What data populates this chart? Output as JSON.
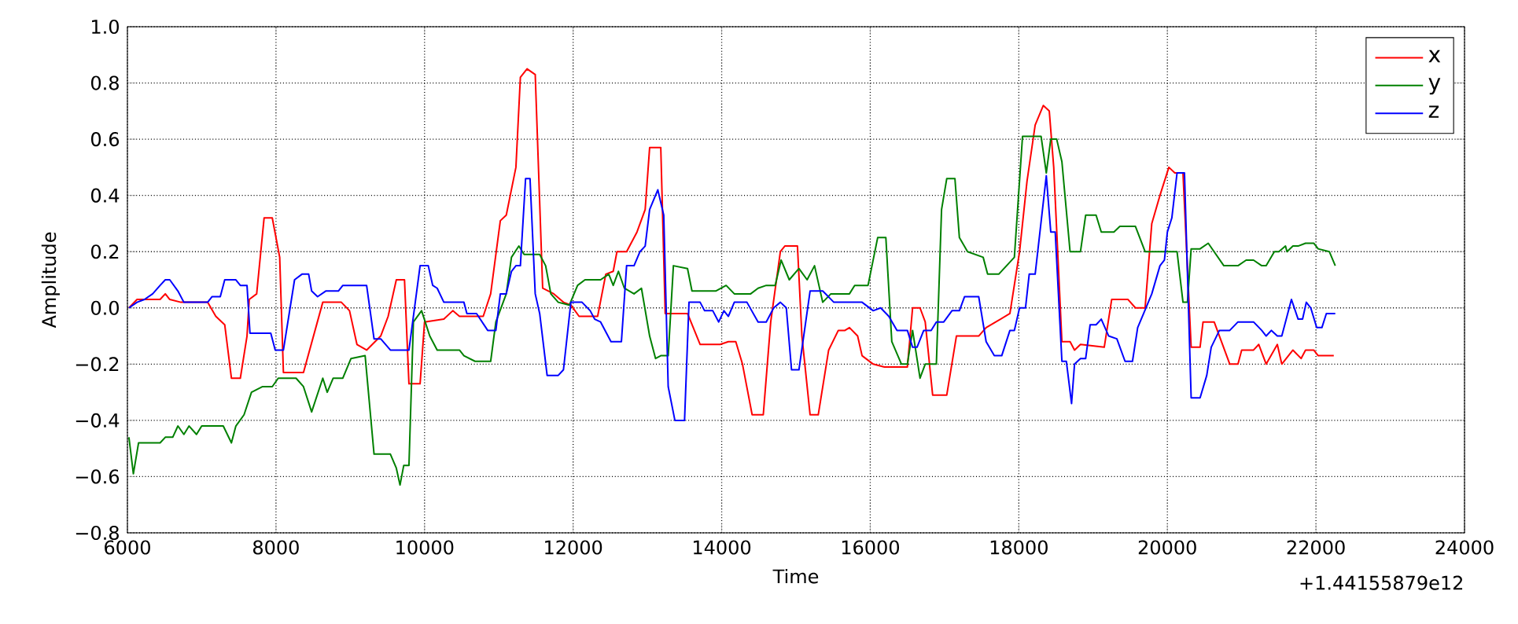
{
  "chart_data": {
    "type": "line",
    "xlabel": "Time",
    "ylabel": "Amplitude",
    "annotations": [
      "+1.44155879e12"
    ],
    "xlim": [
      6000,
      24000
    ],
    "xticks": [
      6000,
      8000,
      10000,
      12000,
      14000,
      16000,
      18000,
      20000,
      22000,
      24000
    ],
    "ylim": [
      -0.8,
      1.0
    ],
    "yticks": [
      {
        "value": -0.8,
        "label": "−0.8"
      },
      {
        "value": -0.6,
        "label": "−0.6"
      },
      {
        "value": -0.4,
        "label": "−0.4"
      },
      {
        "value": -0.2,
        "label": "−0.2"
      },
      {
        "value": 0,
        "label": "0.0"
      },
      {
        "value": 0.2,
        "label": "0.2"
      },
      {
        "value": 0.4,
        "label": "0.4"
      },
      {
        "value": 0.6,
        "label": "0.6"
      },
      {
        "value": 0.8,
        "label": "0.8"
      },
      {
        "value": 1.0,
        "label": "1.0"
      }
    ],
    "grid": true,
    "legend": "top right",
    "marker": "none",
    "line_style": "solid",
    "series": [
      {
        "name": "x",
        "color": "#ff0000",
        "x": [
          6020,
          6130,
          6440,
          6510,
          6570,
          6720,
          7080,
          7190,
          7310,
          7400,
          7520,
          7610,
          7640,
          7740,
          7840,
          7950,
          8050,
          8100,
          8370,
          8630,
          8880,
          8990,
          9090,
          9220,
          9410,
          9510,
          9620,
          9730,
          9790,
          9940,
          10000,
          10260,
          10380,
          10470,
          10790,
          10890,
          11020,
          11100,
          11230,
          11290,
          11380,
          11490,
          11590,
          11740,
          11870,
          11970,
          12080,
          12330,
          12440,
          12540,
          12590,
          12720,
          12860,
          12970,
          13030,
          13180,
          13240,
          13540,
          13710,
          13980,
          14090,
          14190,
          14280,
          14410,
          14560,
          14660,
          14790,
          14850,
          15020,
          15080,
          15190,
          15300,
          15440,
          15570,
          15660,
          15720,
          15830,
          15890,
          16040,
          16190,
          16500,
          16570,
          16670,
          16740,
          16840,
          17030,
          17160,
          17460,
          17560,
          17690,
          17880,
          18010,
          18110,
          18220,
          18330,
          18410,
          18470,
          18580,
          18690,
          18750,
          18830,
          19150,
          19250,
          19470,
          19570,
          19700,
          19790,
          19900,
          20020,
          20100,
          20210,
          20320,
          20440,
          20480,
          20630,
          20840,
          20950,
          21000,
          21160,
          21230,
          21330,
          21480,
          21540,
          21690,
          21800,
          21860,
          21970,
          22030,
          22240
        ],
        "values": [
          0.0,
          0.03,
          0.03,
          0.05,
          0.03,
          0.02,
          0.02,
          -0.03,
          -0.06,
          -0.25,
          -0.25,
          -0.1,
          0.03,
          0.05,
          0.32,
          0.32,
          0.18,
          -0.23,
          -0.23,
          0.02,
          0.02,
          -0.01,
          -0.13,
          -0.15,
          -0.1,
          -0.03,
          0.1,
          0.1,
          -0.27,
          -0.27,
          -0.05,
          -0.04,
          -0.01,
          -0.03,
          -0.03,
          0.05,
          0.31,
          0.33,
          0.5,
          0.82,
          0.85,
          0.83,
          0.07,
          0.05,
          0.02,
          0.01,
          -0.03,
          -0.03,
          0.12,
          0.13,
          0.2,
          0.2,
          0.27,
          0.35,
          0.57,
          0.57,
          -0.02,
          -0.02,
          -0.13,
          -0.13,
          -0.12,
          -0.12,
          -0.2,
          -0.38,
          -0.38,
          -0.05,
          0.2,
          0.22,
          0.22,
          -0.1,
          -0.38,
          -0.38,
          -0.15,
          -0.08,
          -0.08,
          -0.07,
          -0.1,
          -0.17,
          -0.2,
          -0.21,
          -0.21,
          0.0,
          0.0,
          -0.05,
          -0.31,
          -0.31,
          -0.1,
          -0.1,
          -0.07,
          -0.05,
          -0.02,
          0.2,
          0.45,
          0.65,
          0.72,
          0.7,
          0.5,
          -0.12,
          -0.12,
          -0.15,
          -0.13,
          -0.14,
          0.03,
          0.03,
          0.0,
          0.0,
          0.3,
          0.4,
          0.5,
          0.48,
          0.48,
          -0.14,
          -0.14,
          -0.05,
          -0.05,
          -0.2,
          -0.2,
          -0.15,
          -0.15,
          -0.13,
          -0.2,
          -0.13,
          -0.2,
          -0.15,
          -0.18,
          -0.15,
          -0.15,
          -0.17,
          -0.17
        ]
      },
      {
        "name": "y",
        "color": "#008000",
        "x": [
          6020,
          6080,
          6150,
          6230,
          6440,
          6510,
          6610,
          6680,
          6760,
          6830,
          6930,
          7000,
          7290,
          7400,
          7460,
          7570,
          7670,
          7820,
          7950,
          8030,
          8270,
          8370,
          8480,
          8630,
          8690,
          8770,
          8900,
          9010,
          9200,
          9320,
          9540,
          9620,
          9670,
          9720,
          9790,
          9850,
          9960,
          10070,
          10170,
          10380,
          10470,
          10530,
          10680,
          10890,
          10960,
          11100,
          11170,
          11270,
          11340,
          11550,
          11630,
          11700,
          11800,
          11950,
          12060,
          12160,
          12370,
          12480,
          12540,
          12610,
          12690,
          12820,
          12920,
          13030,
          13110,
          13180,
          13280,
          13350,
          13540,
          13600,
          13920,
          14060,
          14170,
          14390,
          14490,
          14600,
          14720,
          14800,
          14910,
          15040,
          15150,
          15250,
          15360,
          15470,
          15720,
          15790,
          15970,
          16100,
          16210,
          16290,
          16420,
          16500,
          16570,
          16670,
          16740,
          16890,
          16960,
          17030,
          17140,
          17200,
          17310,
          17520,
          17580,
          17730,
          17940,
          18050,
          18300,
          18370,
          18430,
          18510,
          18580,
          18690,
          18830,
          18900,
          19040,
          19110,
          19280,
          19360,
          19570,
          19700,
          20130,
          20210,
          20270,
          20320,
          20440,
          20550,
          20760,
          20950,
          21060,
          21160,
          21270,
          21330,
          21440,
          21500,
          21590,
          21610,
          21690,
          21760,
          21860,
          21970,
          22030,
          22180,
          22260
        ],
        "values": [
          -0.46,
          -0.59,
          -0.48,
          -0.48,
          -0.48,
          -0.46,
          -0.46,
          -0.42,
          -0.45,
          -0.42,
          -0.45,
          -0.42,
          -0.42,
          -0.48,
          -0.42,
          -0.38,
          -0.3,
          -0.28,
          -0.28,
          -0.25,
          -0.25,
          -0.28,
          -0.37,
          -0.25,
          -0.3,
          -0.25,
          -0.25,
          -0.18,
          -0.17,
          -0.52,
          -0.52,
          -0.57,
          -0.63,
          -0.56,
          -0.56,
          -0.05,
          -0.01,
          -0.1,
          -0.15,
          -0.15,
          -0.15,
          -0.17,
          -0.19,
          -0.19,
          -0.05,
          0.05,
          0.18,
          0.22,
          0.19,
          0.19,
          0.15,
          0.05,
          0.02,
          0.01,
          0.08,
          0.1,
          0.1,
          0.12,
          0.08,
          0.13,
          0.07,
          0.05,
          0.07,
          -0.1,
          -0.18,
          -0.17,
          -0.17,
          0.15,
          0.14,
          0.06,
          0.06,
          0.08,
          0.05,
          0.05,
          0.07,
          0.08,
          0.08,
          0.17,
          0.1,
          0.14,
          0.1,
          0.15,
          0.02,
          0.05,
          0.05,
          0.08,
          0.08,
          0.25,
          0.25,
          -0.12,
          -0.2,
          -0.2,
          -0.08,
          -0.25,
          -0.2,
          -0.2,
          0.35,
          0.46,
          0.46,
          0.25,
          0.2,
          0.18,
          0.12,
          0.12,
          0.18,
          0.61,
          0.61,
          0.48,
          0.6,
          0.6,
          0.52,
          0.2,
          0.2,
          0.33,
          0.33,
          0.27,
          0.27,
          0.29,
          0.29,
          0.2,
          0.2,
          0.02,
          0.02,
          0.21,
          0.21,
          0.23,
          0.15,
          0.15,
          0.17,
          0.17,
          0.15,
          0.15,
          0.2,
          0.2,
          0.22,
          0.2,
          0.22,
          0.22,
          0.23,
          0.23,
          0.21,
          0.2,
          0.15
        ]
      },
      {
        "name": "z",
        "color": "#0000ff",
        "x": [
          6020,
          6130,
          6230,
          6340,
          6440,
          6510,
          6570,
          6680,
          6760,
          7080,
          7140,
          7250,
          7310,
          7460,
          7520,
          7610,
          7650,
          7930,
          7990,
          8100,
          8250,
          8350,
          8440,
          8480,
          8560,
          8670,
          8840,
          8900,
          9220,
          9320,
          9410,
          9540,
          9790,
          9940,
          10050,
          10110,
          10170,
          10260,
          10530,
          10570,
          10700,
          10850,
          10960,
          11020,
          11100,
          11170,
          11230,
          11290,
          11360,
          11420,
          11490,
          11550,
          11650,
          11800,
          11870,
          11970,
          12120,
          12230,
          12290,
          12370,
          12510,
          12650,
          12720,
          12820,
          12900,
          12970,
          13030,
          13140,
          13220,
          13280,
          13370,
          13500,
          13560,
          13710,
          13770,
          13880,
          13960,
          14030,
          14090,
          14170,
          14340,
          14490,
          14600,
          14700,
          14790,
          14870,
          14940,
          15040,
          15190,
          15360,
          15510,
          15890,
          16040,
          16140,
          16250,
          16360,
          16500,
          16570,
          16630,
          16720,
          16820,
          16890,
          16990,
          17100,
          17200,
          17270,
          17460,
          17560,
          17670,
          17770,
          17880,
          17940,
          18010,
          18090,
          18140,
          18220,
          18370,
          18430,
          18490,
          18580,
          18640,
          18710,
          18750,
          18830,
          18900,
          18960,
          19040,
          19110,
          19210,
          19320,
          19430,
          19530,
          19600,
          19680,
          19790,
          19900,
          19960,
          20000,
          20060,
          20130,
          20230,
          20320,
          20440,
          20530,
          20590,
          20700,
          20840,
          20950,
          21160,
          21270,
          21330,
          21400,
          21480,
          21540,
          21610,
          21670,
          21760,
          21820,
          21870,
          21930,
          22010,
          22080,
          22140,
          22260
        ],
        "values": [
          0.0,
          0.02,
          0.03,
          0.05,
          0.08,
          0.1,
          0.1,
          0.06,
          0.02,
          0.02,
          0.04,
          0.04,
          0.1,
          0.1,
          0.08,
          0.08,
          -0.09,
          -0.09,
          -0.15,
          -0.15,
          0.1,
          0.12,
          0.12,
          0.06,
          0.04,
          0.06,
          0.06,
          0.08,
          0.08,
          -0.11,
          -0.11,
          -0.15,
          -0.15,
          0.15,
          0.15,
          0.08,
          0.07,
          0.02,
          0.02,
          -0.02,
          -0.02,
          -0.08,
          -0.08,
          0.05,
          0.05,
          0.13,
          0.15,
          0.15,
          0.46,
          0.46,
          0.05,
          -0.02,
          -0.24,
          -0.24,
          -0.22,
          0.02,
          0.02,
          -0.01,
          -0.04,
          -0.05,
          -0.12,
          -0.12,
          0.15,
          0.15,
          0.2,
          0.22,
          0.35,
          0.42,
          0.33,
          -0.28,
          -0.4,
          -0.4,
          0.02,
          0.02,
          -0.01,
          -0.01,
          -0.05,
          -0.01,
          -0.03,
          0.02,
          0.02,
          -0.05,
          -0.05,
          0.0,
          0.02,
          0.0,
          -0.22,
          -0.22,
          0.06,
          0.06,
          0.02,
          0.02,
          -0.01,
          0.0,
          -0.03,
          -0.08,
          -0.08,
          -0.14,
          -0.14,
          -0.08,
          -0.08,
          -0.05,
          -0.05,
          -0.01,
          -0.01,
          0.04,
          0.04,
          -0.12,
          -0.17,
          -0.17,
          -0.08,
          -0.08,
          0.0,
          0.0,
          0.12,
          0.12,
          0.47,
          0.27,
          0.27,
          -0.19,
          -0.19,
          -0.34,
          -0.2,
          -0.18,
          -0.18,
          -0.06,
          -0.06,
          -0.04,
          -0.1,
          -0.11,
          -0.19,
          -0.19,
          -0.07,
          -0.02,
          0.05,
          0.15,
          0.17,
          0.27,
          0.32,
          0.48,
          0.48,
          -0.32,
          -0.32,
          -0.24,
          -0.14,
          -0.08,
          -0.08,
          -0.05,
          -0.05,
          -0.08,
          -0.1,
          -0.08,
          -0.1,
          -0.1,
          -0.03,
          0.03,
          -0.04,
          -0.04,
          0.02,
          0.0,
          -0.07,
          -0.07,
          -0.02,
          -0.02
        ]
      }
    ]
  }
}
